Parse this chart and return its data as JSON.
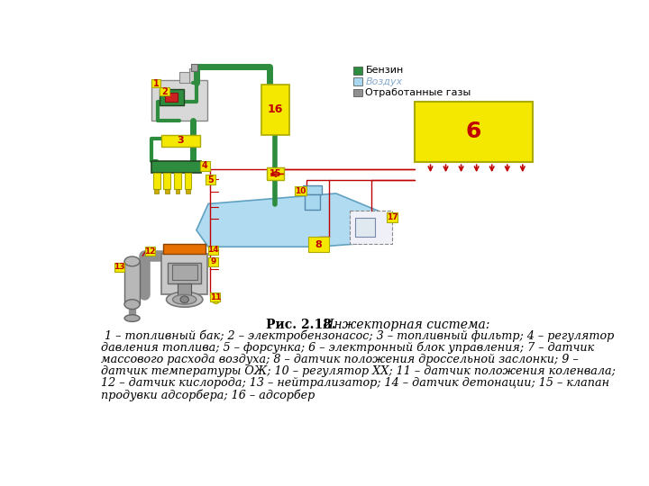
{
  "title_bold": "Рис. 2.18.",
  "title_italic": " Инжекторная система:",
  "caption_text": " 1 – топливный бак; 2 – электробензонасос; 3 – топливный фильтр; 4 – регулятор\nдавления топлива; 5 – форсунка; 6 – электронный блок управления; 7 – датчик\nмассового расхода воздуха; 8 – датчик положения дроссельной заслонки; 9 –\nдатчик температуры ОЖ; 10 – регулятор ХХ; 11 – датчик положения коленвала;\n12 – датчик кислорода; 13 – нейтрализатор; 14 – датчик детонации; 15 – клапан\nпродувки адсорбера; 16 – адсорбер",
  "bg_color": "#ffffff",
  "legend_items": [
    {
      "label": "Бензин",
      "color": "#3a9e4a"
    },
    {
      "label": "Воздух",
      "color": "#b8dff0"
    },
    {
      "label": "Отработанные газы",
      "color": "#909090"
    }
  ],
  "yellow": "#f5e800",
  "green": "#2d8c3e",
  "lblue": "#a8d8f0",
  "red": "#c00000",
  "orange": "#e87000",
  "gray": "#909090",
  "darkgray": "#707070"
}
